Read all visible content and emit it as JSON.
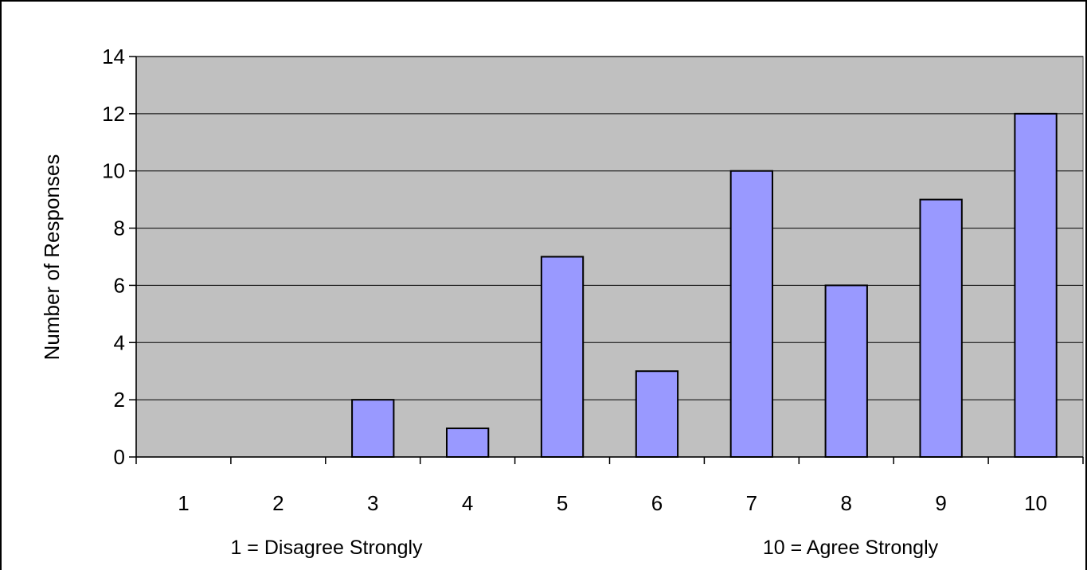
{
  "chart_data": {
    "type": "bar",
    "categories": [
      "1",
      "2",
      "3",
      "4",
      "5",
      "6",
      "7",
      "8",
      "9",
      "10"
    ],
    "values": [
      0,
      0,
      2,
      1,
      7,
      3,
      10,
      6,
      9,
      12
    ],
    "title": "",
    "xlabel": "",
    "ylabel": "Number of Responses",
    "ylim": [
      0,
      14
    ],
    "yticks": [
      "0",
      "2",
      "4",
      "6",
      "8",
      "10",
      "12",
      "14"
    ],
    "grid": true,
    "legend": "none",
    "annotations": [
      "1 = Disagree Strongly",
      "10 = Agree Strongly"
    ],
    "colors": {
      "bar_fill": "#9999ff",
      "bar_stroke": "#000000",
      "plot_background": "#c0c0c0",
      "gridline": "#000000"
    }
  }
}
